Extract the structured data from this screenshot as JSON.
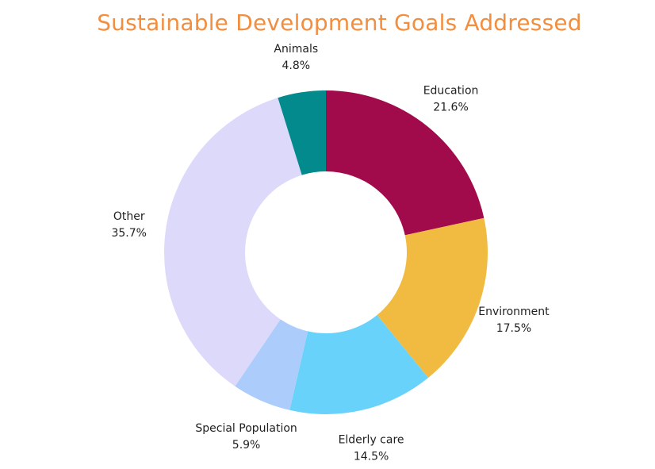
{
  "title": "Sustainable Development Goals Addressed",
  "chart_data": {
    "type": "pie",
    "title": "Sustainable Development Goals Addressed",
    "donut": true,
    "slices": [
      {
        "label": "Education",
        "value": 21.6,
        "value_label": "21.6%",
        "color": "#a20b4b"
      },
      {
        "label": "Environment",
        "value": 17.5,
        "value_label": "17.5%",
        "color": "#f1bb42"
      },
      {
        "label": "Elderly care",
        "value": 14.5,
        "value_label": "14.5%",
        "color": "#69d2fb"
      },
      {
        "label": "Special Population",
        "value": 5.9,
        "value_label": "5.9%",
        "color": "#accdfb"
      },
      {
        "label": "Other",
        "value": 35.7,
        "value_label": "35.7%",
        "color": "#ddd9fa"
      },
      {
        "label": "Animals",
        "value": 4.8,
        "value_label": "4.8%",
        "color": "#028a8c"
      }
    ]
  }
}
